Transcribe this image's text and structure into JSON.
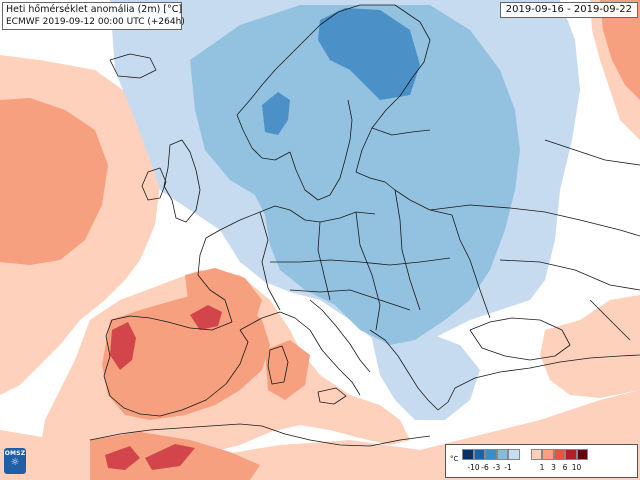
{
  "header": {
    "title": "Heti hőmérséklet anomália (2m) [°C]",
    "subtitle": "ECMWF 2019-09-12 00:00 UTC (+264h)",
    "period": "2019-09-16 - 2019-09-22"
  },
  "logo": {
    "text": "OMSZ",
    "icon": "omsz-logo-icon"
  },
  "legend": {
    "unit": "°C",
    "cold_colors": [
      "#08306b",
      "#1764ab",
      "#3d8dc4",
      "#84bcdb",
      "#c6dcef"
    ],
    "warm_colors": [
      "#fbd0b9",
      "#f6a07f",
      "#e3573f",
      "#b11f24",
      "#67000d"
    ],
    "cold_ticks": [
      "-10",
      "-6",
      "-3",
      "-1"
    ],
    "warm_ticks": [
      "1",
      "3",
      "6",
      "10"
    ]
  },
  "palette": {
    "background": "#ffffff",
    "light_blue": "#c6dbef",
    "mid_blue": "#93c2e0",
    "deep_blue": "#4b91c8",
    "light_red": "#fdd1bb",
    "mid_red": "#f08e70",
    "deep_red": "#d2454a",
    "borders": "#1a1a1a"
  }
}
